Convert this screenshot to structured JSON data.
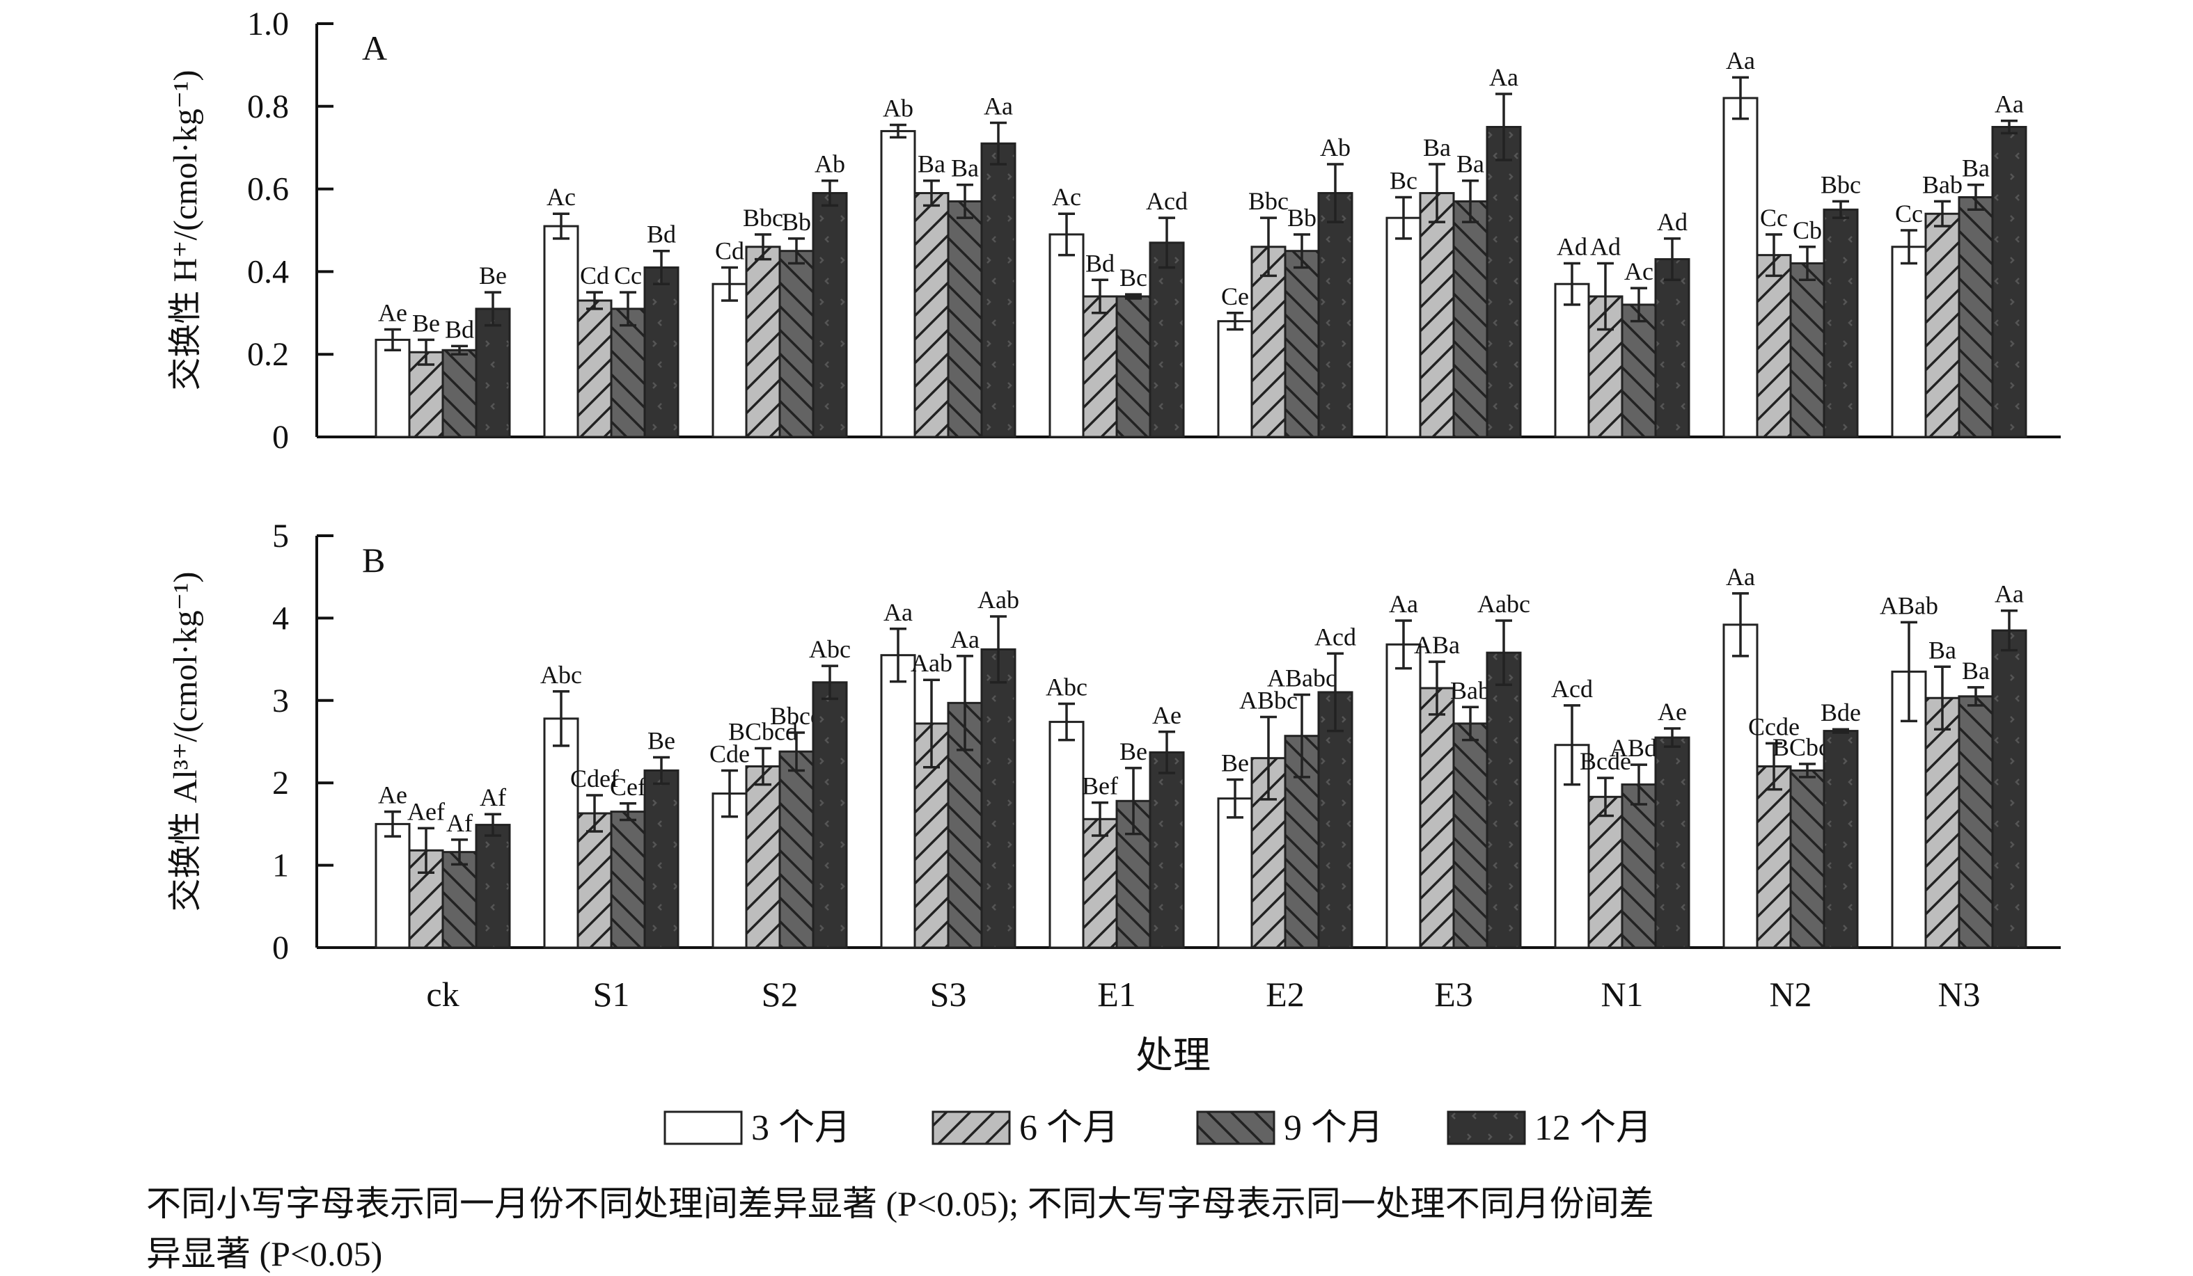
{
  "chart_data": {
    "type": "bar",
    "categories": [
      "ck",
      "S1",
      "S2",
      "S3",
      "E1",
      "E2",
      "E3",
      "N1",
      "N2",
      "N3"
    ],
    "xlabel": "处理",
    "legend": {
      "placement": "bottom",
      "entries": [
        "3 个月",
        "6 个月",
        "9 个月",
        "12 个月"
      ]
    },
    "series_styles": [
      {
        "fill": "#ffffff",
        "pattern": "none"
      },
      {
        "fill": "#bdbdbd",
        "pattern": "forward-hatch"
      },
      {
        "fill": "#636363",
        "pattern": "back-hatch"
      },
      {
        "fill": "#333333",
        "pattern": "dots"
      }
    ],
    "panels": [
      {
        "panel_label": "A",
        "ylabel": "交换性 H⁺/(cmol·kg⁻¹)",
        "ylim": [
          0,
          1.0
        ],
        "yticks": [
          "0",
          "0.2",
          "0.4",
          "0.6",
          "0.8",
          "1.0"
        ],
        "ytick_values": [
          0,
          0.2,
          0.4,
          0.6,
          0.8,
          1.0
        ],
        "series": [
          {
            "name": "3 个月",
            "values": [
              0.235,
              0.51,
              0.37,
              0.74,
              0.49,
              0.28,
              0.53,
              0.37,
              0.82,
              0.46
            ],
            "errors": [
              0.025,
              0.03,
              0.04,
              0.015,
              0.05,
              0.02,
              0.05,
              0.05,
              0.05,
              0.04
            ],
            "letters": [
              "Ae",
              "Ac",
              "Cd",
              "Ab",
              "Ac",
              "Ce",
              "Bc",
              "Ad",
              "Aa",
              "Cc"
            ]
          },
          {
            "name": "6 个月",
            "values": [
              0.205,
              0.33,
              0.46,
              0.59,
              0.34,
              0.46,
              0.59,
              0.34,
              0.44,
              0.54
            ],
            "errors": [
              0.03,
              0.02,
              0.03,
              0.03,
              0.04,
              0.07,
              0.07,
              0.08,
              0.05,
              0.03
            ],
            "letters": [
              "Be",
              "Cd",
              "Bbc",
              "Ba",
              "Bd",
              "Bbc",
              "Ba",
              "Ad",
              "Cc",
              "Bab"
            ]
          },
          {
            "name": "9 个月",
            "values": [
              0.21,
              0.31,
              0.45,
              0.57,
              0.34,
              0.45,
              0.57,
              0.32,
              0.42,
              0.58
            ],
            "errors": [
              0.01,
              0.04,
              0.03,
              0.04,
              0.005,
              0.04,
              0.05,
              0.04,
              0.04,
              0.03
            ],
            "letters": [
              "Bd",
              "Cc",
              "Bb",
              "Ba",
              "Bc",
              "Bb",
              "Ba",
              "Ac",
              "Cb",
              "Ba"
            ]
          },
          {
            "name": "12 个月",
            "values": [
              0.31,
              0.41,
              0.59,
              0.71,
              0.47,
              0.59,
              0.75,
              0.43,
              0.55,
              0.75
            ],
            "errors": [
              0.04,
              0.04,
              0.03,
              0.05,
              0.06,
              0.07,
              0.08,
              0.05,
              0.02,
              0.015
            ],
            "letters": [
              "Be",
              "Bd",
              "Ab",
              "Aa",
              "Acd",
              "Ab",
              "Aa",
              "Ad",
              "Bbc",
              "Aa"
            ]
          }
        ]
      },
      {
        "panel_label": "B",
        "ylabel": "交换性 Al³⁺/(cmol·kg⁻¹)",
        "ylim": [
          0,
          5
        ],
        "yticks": [
          "0",
          "1",
          "2",
          "3",
          "4",
          "5"
        ],
        "ytick_values": [
          0,
          1,
          2,
          3,
          4,
          5
        ],
        "series": [
          {
            "name": "3 个月",
            "values": [
              1.5,
              2.78,
              1.87,
              3.55,
              2.74,
              1.81,
              3.68,
              2.46,
              3.92,
              3.35
            ],
            "errors": [
              0.15,
              0.33,
              0.28,
              0.32,
              0.22,
              0.23,
              0.29,
              0.48,
              0.38,
              0.6
            ],
            "letters": [
              "Ae",
              "Abc",
              "Cde",
              "Aa",
              "Abc",
              "Be",
              "Aa",
              "Acd",
              "Aa",
              "ABab"
            ]
          },
          {
            "name": "6 个月",
            "values": [
              1.18,
              1.63,
              2.2,
              2.72,
              1.56,
              2.3,
              3.15,
              1.83,
              2.2,
              3.03
            ],
            "errors": [
              0.27,
              0.22,
              0.22,
              0.53,
              0.2,
              0.5,
              0.32,
              0.23,
              0.28,
              0.38
            ],
            "letters": [
              "Aef",
              "Cdef",
              "BCbcd",
              "Aab",
              "Bef",
              "ABbc",
              "ABa",
              "Bcde",
              "Ccde",
              "Ba"
            ]
          },
          {
            "name": "9 个月",
            "values": [
              1.16,
              1.65,
              2.38,
              2.97,
              1.78,
              2.57,
              2.72,
              1.98,
              2.15,
              3.05
            ],
            "errors": [
              0.15,
              0.1,
              0.23,
              0.57,
              0.4,
              0.5,
              0.2,
              0.24,
              0.08,
              0.11
            ],
            "letters": [
              "Af",
              "Cef",
              "Bbcd",
              "Aa",
              "Be",
              "ABabc",
              "Bab",
              "ABde",
              "BCbcd",
              "Ba"
            ]
          },
          {
            "name": "12 个月",
            "values": [
              1.49,
              2.15,
              3.22,
              3.62,
              2.37,
              3.1,
              3.58,
              2.55,
              2.63,
              3.85
            ],
            "errors": [
              0.13,
              0.16,
              0.2,
              0.4,
              0.25,
              0.47,
              0.39,
              0.11,
              0.02,
              0.24
            ],
            "letters": [
              "Af",
              "Be",
              "Abc",
              "Aab",
              "Ae",
              "Acd",
              "Aabc",
              "Ae",
              "Bde",
              "Aa"
            ]
          }
        ]
      }
    ]
  },
  "footnote": {
    "line1": "不同小写字母表示同一月份不同处理间差异显著 (P<0.05); 不同大写字母表示同一处理不同月份间差",
    "line2": "异显著 (P<0.05)"
  }
}
